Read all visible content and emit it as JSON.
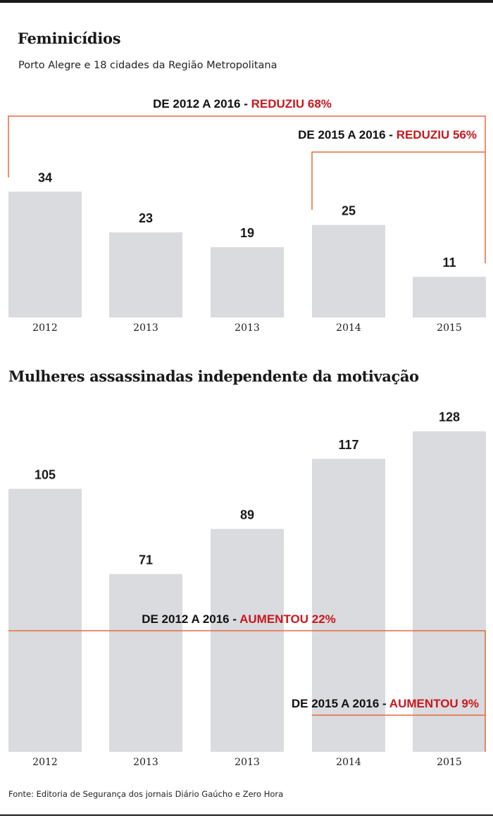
{
  "title": "Feminicídios",
  "subtitle": "Porto Alegre e 18 cidades da Região Metropolitana",
  "title2": "Mulheres assassinadas independente da motivação",
  "source": "Fonte: Editoria de Segurança dos jornais Diário Gaúcho e Zero Hora",
  "colors": {
    "bar": "#d9dbde",
    "bracket": "#e8693f",
    "highlight": "#c8181e"
  },
  "chart_data": [
    {
      "type": "bar",
      "title": "Feminicídios",
      "subtitle": "Porto Alegre e 18 cidades da Região Metropolitana",
      "categories": [
        "2012",
        "2013",
        "2013",
        "2014",
        "2015"
      ],
      "values": [
        34,
        23,
        19,
        25,
        11
      ],
      "value_labels": [
        "34",
        "23",
        "19",
        "25",
        "11"
      ],
      "ylim": [
        0,
        45
      ],
      "grid": false,
      "annotations": [
        {
          "prefix": "DE 2012 A 2016 - ",
          "highlight": "REDUZIU 68%",
          "from": 0,
          "to": 4
        },
        {
          "prefix": "DE 2015 A 2016 - ",
          "highlight": "REDUZIU 56%",
          "from": 3,
          "to": 4
        }
      ]
    },
    {
      "type": "bar",
      "title": "Mulheres assassinadas independente da motivação",
      "categories": [
        "2012",
        "2013",
        "2013",
        "2014",
        "2015"
      ],
      "values": [
        105,
        71,
        89,
        117,
        128
      ],
      "value_labels": [
        "105",
        "71",
        "89",
        "117",
        "128"
      ],
      "ylim": [
        0,
        140
      ],
      "grid": false,
      "annotations": [
        {
          "prefix": "DE 2012 A 2016 - ",
          "highlight": "AUMENTOU 22%",
          "from": 0,
          "to": 4
        },
        {
          "prefix": "DE 2015 A 2016 - ",
          "highlight": "AUMENTOU 9%",
          "from": 3,
          "to": 4
        }
      ]
    }
  ]
}
